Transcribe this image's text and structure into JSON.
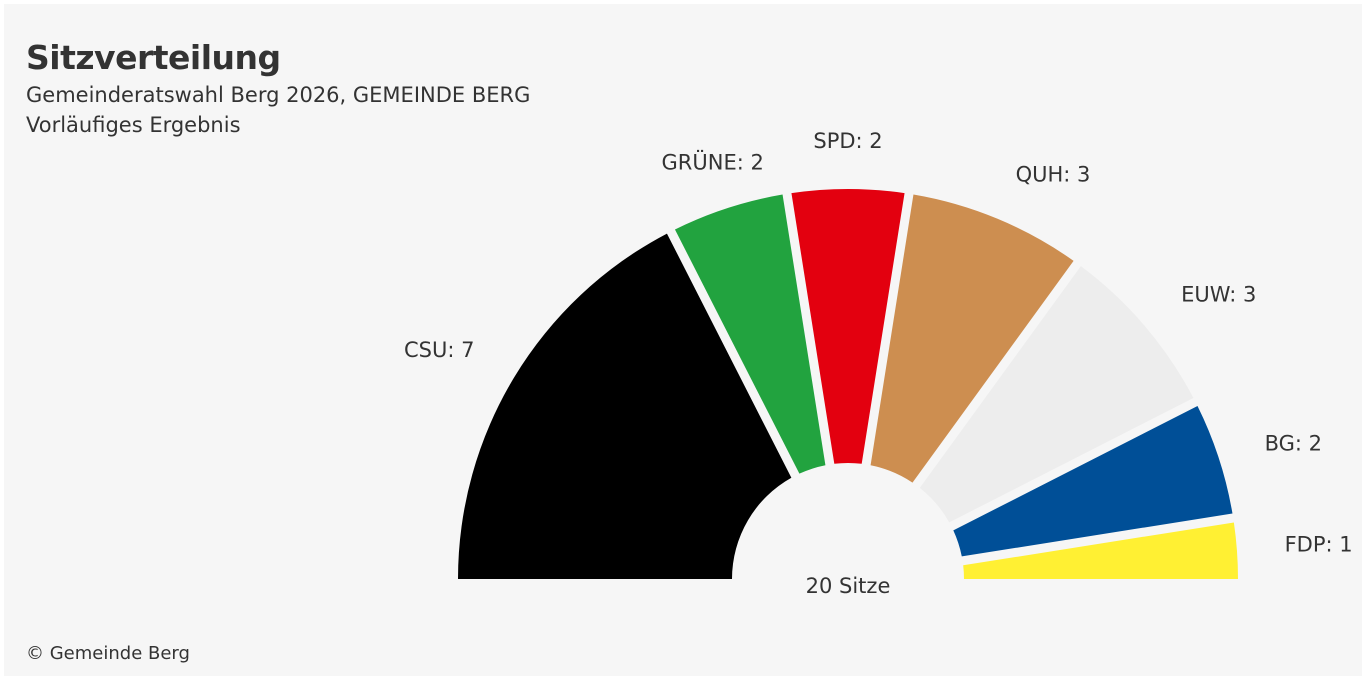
{
  "title": "Sitzverteilung",
  "subtitle": "Gemeinderatswahl Berg 2026, GEMEINDE BERG",
  "subtitle2": "Vorläufiges Ergebnis",
  "credit": "© Gemeinde Berg",
  "chart_data": {
    "type": "pie",
    "variant": "semicircle-parliament",
    "total_label": "20 Sitze",
    "total": 20,
    "parties": [
      {
        "name": "CSU",
        "seats": 7,
        "label": "CSU: 7",
        "color": "#000000"
      },
      {
        "name": "GRÜNE",
        "seats": 2,
        "label": "GRÜNE: 2",
        "color": "#22a33f"
      },
      {
        "name": "SPD",
        "seats": 2,
        "label": "SPD: 2",
        "color": "#e3000f"
      },
      {
        "name": "QUH",
        "seats": 3,
        "label": "QUH: 3",
        "color": "#cd8e50"
      },
      {
        "name": "EUW",
        "seats": 3,
        "label": "EUW: 3",
        "color": "#ededed"
      },
      {
        "name": "BG",
        "seats": 2,
        "label": "BG: 2",
        "color": "#004f97"
      },
      {
        "name": "FDP",
        "seats": 1,
        "label": "FDP: 1",
        "color": "#fff033"
      }
    ]
  }
}
